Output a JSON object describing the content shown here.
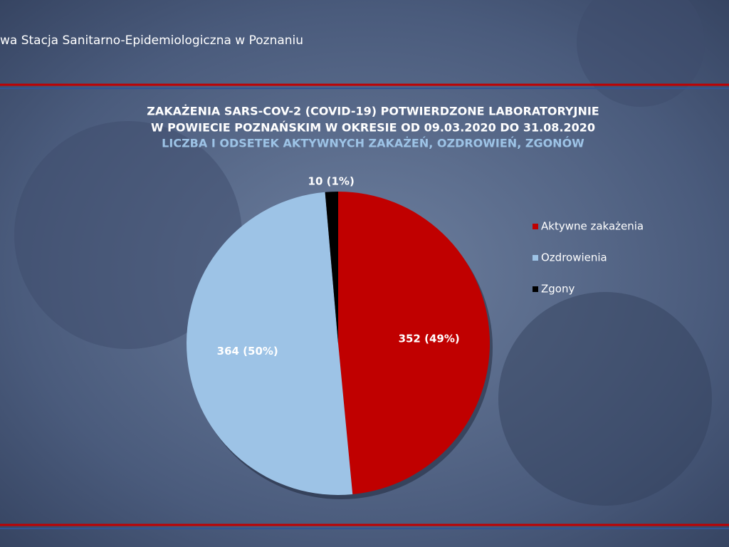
{
  "header": "wa Stacja Sanitarno-Epidemiologiczna w Poznaniu",
  "chart_data": {
    "type": "pie",
    "title": [
      "ZAKAŻENIA SARS-COV-2 (COVID-19) POTWIERDZONE LABORATORYJNIE",
      "W POWIECIE POZNAŃSKIM W OKRESIE OD 09.03.2020 DO 31.08.2020"
    ],
    "subtitle": "LICZBA I ODSETEK AKTYWNYCH ZAKAŻEŃ, OZDROWIEŃ, ZGONÓW",
    "categories": [
      "Aktywne zakażenia",
      "Ozdrowienia",
      "Zgony"
    ],
    "values": [
      352,
      364,
      10
    ],
    "value_labels": [
      "352 (49%)",
      "364 (50%)",
      "10 (1%)"
    ],
    "colors": [
      "#c00000",
      "#9dc3e6",
      "#000000"
    ],
    "legend": "right"
  }
}
